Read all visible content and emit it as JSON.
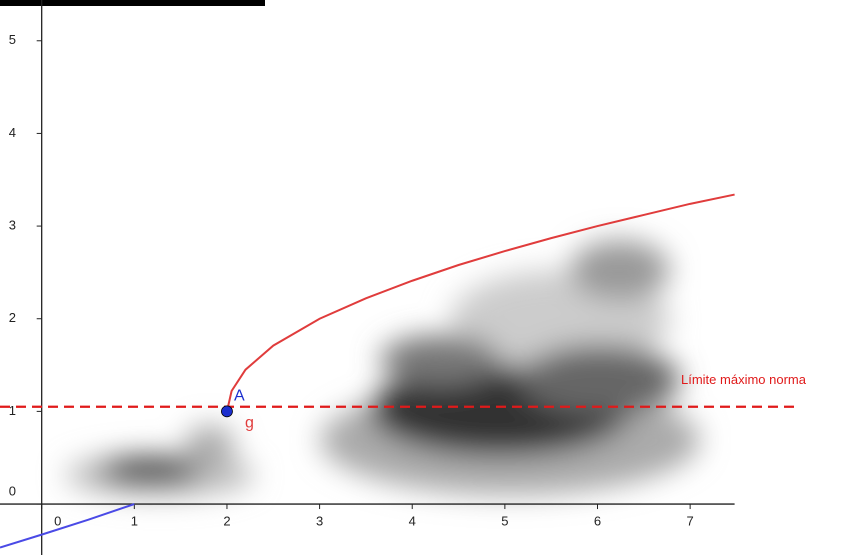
{
  "chart_data": {
    "type": "line",
    "xlim": [
      -0.45,
      7.48
    ],
    "ylim": [
      -0.55,
      5.44
    ],
    "xticks": [
      0,
      1,
      2,
      3,
      4,
      5,
      6,
      7
    ],
    "yticks": [
      0,
      1,
      2,
      3,
      4,
      5
    ],
    "series": [
      {
        "name": "g",
        "color": "#e03c3c",
        "x": [
          2,
          2.05,
          2.2,
          2.5,
          3,
          3.5,
          4,
          4.5,
          5,
          5.5,
          6,
          6.5,
          7,
          7.48
        ],
        "values": [
          1,
          1.22,
          1.45,
          1.71,
          2,
          2.22,
          2.41,
          2.58,
          2.73,
          2.87,
          3,
          3.12,
          3.24,
          3.34
        ]
      },
      {
        "color": "#4a4ae6",
        "x": [
          -0.45,
          0,
          0.5,
          1
        ],
        "values": [
          -0.47,
          -0.33,
          -0.17,
          0
        ]
      }
    ],
    "points": [
      {
        "label": "A",
        "x": 2,
        "y": 1,
        "color": "#1c2fcf"
      }
    ],
    "reference_line": {
      "label": "Límite máximo norma",
      "y": 1.05,
      "color": "#e01a1a"
    }
  }
}
